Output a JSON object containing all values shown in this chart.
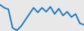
{
  "x": [
    0,
    1,
    2,
    3,
    4,
    5,
    6,
    7,
    8,
    9,
    10,
    11,
    12,
    13,
    14,
    15,
    16,
    17,
    18,
    19,
    20
  ],
  "y": [
    8.5,
    7.5,
    7.0,
    1.0,
    0.2,
    1.5,
    3.5,
    5.5,
    7.5,
    6.0,
    7.5,
    6.2,
    7.8,
    5.5,
    7.2,
    5.0,
    6.2,
    4.5,
    5.5,
    2.5,
    2.0
  ],
  "line_color": "#1a7abf",
  "line_width": 1.5,
  "background_color": "#e8e8e8",
  "ylim": [
    0,
    10
  ],
  "xlim": [
    0,
    20
  ]
}
